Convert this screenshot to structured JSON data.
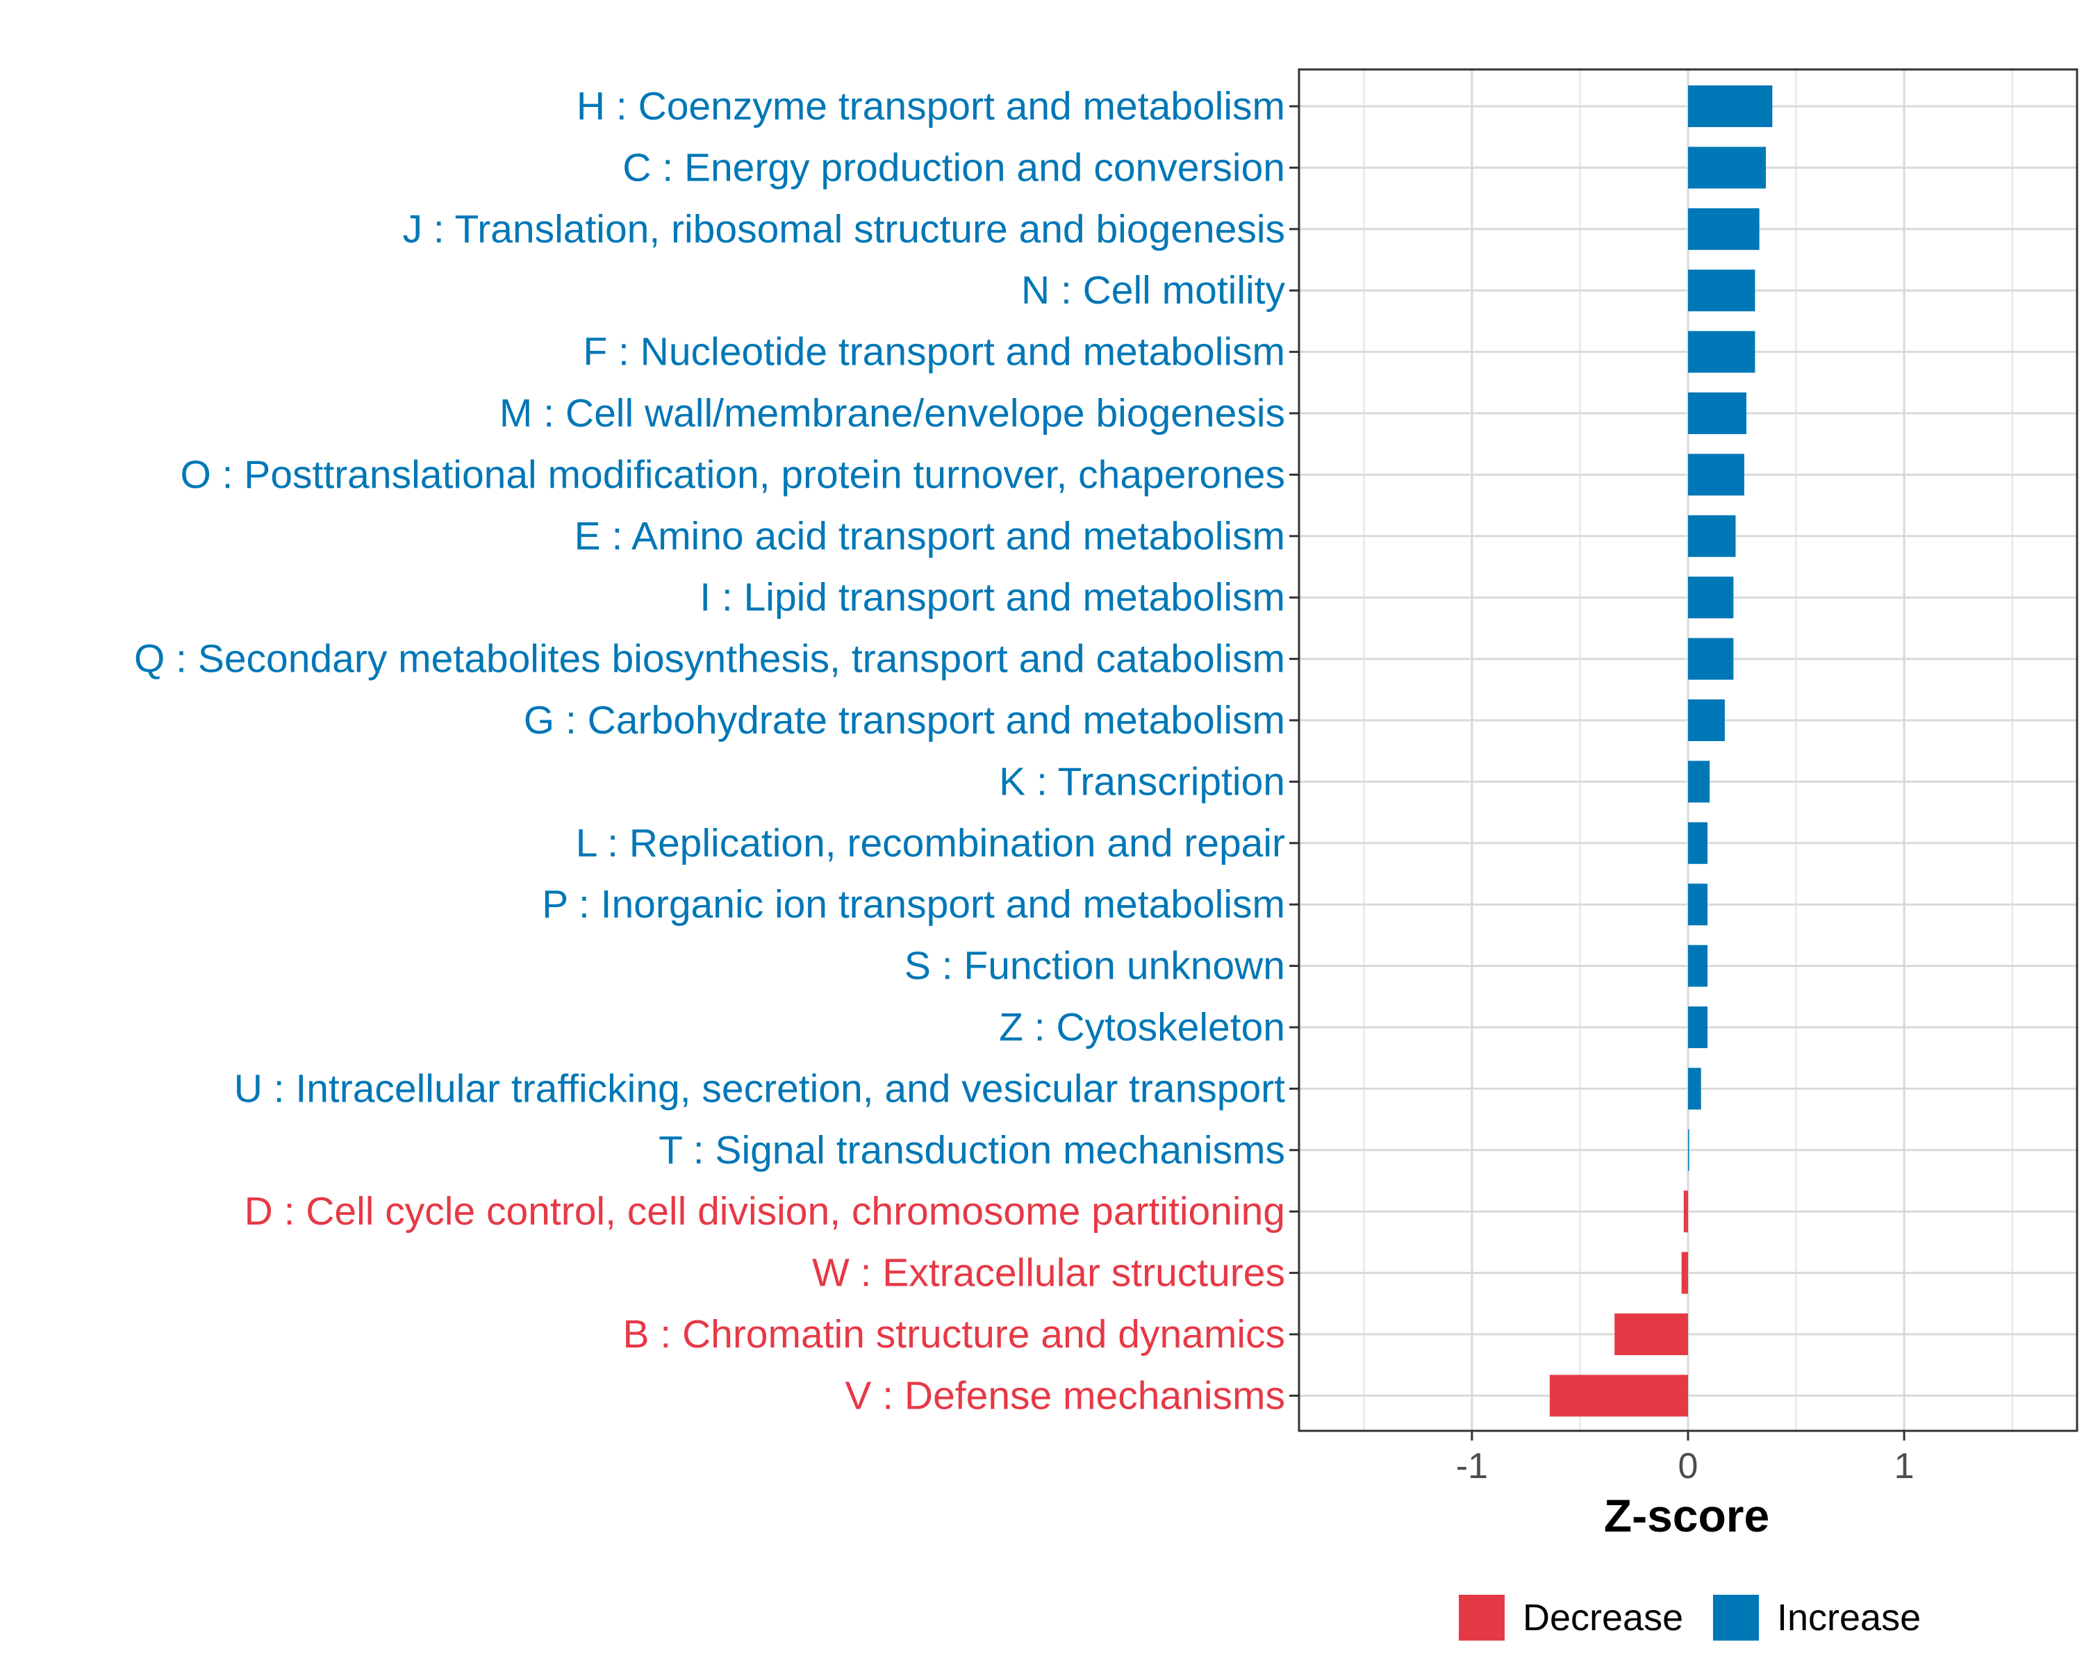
{
  "chart_data": {
    "type": "bar",
    "orientation": "horizontal",
    "title": "",
    "xlabel": "Z-score",
    "ylabel": "",
    "xlim": [
      -1.8,
      1.8
    ],
    "xticks": [
      -1,
      0,
      1
    ],
    "xtick_labels": [
      "-1",
      "0",
      "1"
    ],
    "grid": true,
    "legend_position": "bottom",
    "colors": {
      "Decrease": "#e63946",
      "Increase": "#0077b6"
    },
    "legend": [
      {
        "label": "Decrease",
        "color": "#e63946"
      },
      {
        "label": "Increase",
        "color": "#0077b6"
      }
    ],
    "categories": [
      "H : Coenzyme transport and metabolism",
      "C : Energy production and conversion",
      "J : Translation, ribosomal structure and biogenesis",
      "N : Cell motility",
      "F : Nucleotide transport and metabolism",
      "M : Cell wall/membrane/envelope biogenesis",
      "O : Posttranslational modification, protein turnover, chaperones",
      "E : Amino acid transport and metabolism",
      "I : Lipid transport and metabolism",
      "Q : Secondary metabolites biosynthesis, transport and catabolism",
      "G : Carbohydrate transport and metabolism",
      "K : Transcription",
      "L : Replication, recombination and repair",
      "P : Inorganic ion transport and metabolism",
      "S : Function unknown",
      "Z : Cytoskeleton",
      "U : Intracellular trafficking, secretion, and vesicular transport",
      "T : Signal transduction mechanisms",
      "D : Cell cycle control, cell division, chromosome partitioning",
      "W : Extracellular structures",
      "B : Chromatin structure and dynamics",
      "V : Defense mechanisms"
    ],
    "values": [
      0.39,
      0.36,
      0.33,
      0.31,
      0.31,
      0.27,
      0.26,
      0.22,
      0.21,
      0.21,
      0.17,
      0.1,
      0.09,
      0.09,
      0.09,
      0.09,
      0.06,
      0.005,
      -0.02,
      -0.03,
      -0.34,
      -0.64
    ],
    "groups": [
      "Increase",
      "Increase",
      "Increase",
      "Increase",
      "Increase",
      "Increase",
      "Increase",
      "Increase",
      "Increase",
      "Increase",
      "Increase",
      "Increase",
      "Increase",
      "Increase",
      "Increase",
      "Increase",
      "Increase",
      "Increase",
      "Decrease",
      "Decrease",
      "Decrease",
      "Decrease"
    ]
  }
}
